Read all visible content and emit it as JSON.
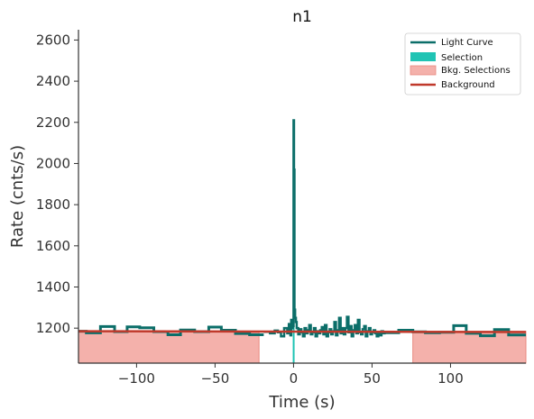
{
  "chart_data": {
    "type": "line",
    "title": "n1",
    "xlabel": "Time (s)",
    "ylabel": "Rate (cnts/s)",
    "xlim": [
      -137,
      148
    ],
    "ylim": [
      1030,
      2650
    ],
    "xticks": [
      -100,
      -50,
      0,
      50,
      100
    ],
    "yticks": [
      1200,
      1400,
      1600,
      1800,
      2000,
      2200,
      2400,
      2600
    ],
    "grid": false,
    "legend_position": "top-right",
    "legend": [
      {
        "label": "Light Curve",
        "kind": "line",
        "color": "#0b6e69"
      },
      {
        "label": "Selection",
        "kind": "patch",
        "color": "#20c4b4"
      },
      {
        "label": "Bkg. Selections",
        "kind": "patch",
        "color": "#f4b1ab"
      },
      {
        "label": "Background",
        "kind": "line",
        "color": "#c0392b"
      }
    ],
    "background_model": {
      "x": [
        -137,
        148
      ],
      "y": [
        1185,
        1181
      ]
    },
    "selection": {
      "x": [
        -0.5,
        0.5
      ]
    },
    "bkg_selections": [
      {
        "x": [
          -137,
          -22
        ]
      },
      {
        "x": [
          76,
          148
        ]
      }
    ],
    "light_curve": {
      "coarse_left": {
        "edges": [
          -137,
          -132,
          -123,
          -114,
          -106,
          -98,
          -89,
          -80,
          -72,
          -63,
          -54,
          -46,
          -37,
          -28,
          -19
        ],
        "values": [
          1185,
          1177,
          1208,
          1183,
          1206,
          1202,
          1183,
          1168,
          1191,
          1183,
          1205,
          1190,
          1174,
          1168
        ]
      },
      "coarse_right": {
        "edges": [
          58,
          67,
          76,
          84,
          93,
          102,
          110,
          119,
          128,
          137,
          148
        ],
        "values": [
          1178,
          1190,
          1182,
          1178,
          1180,
          1212,
          1175,
          1163,
          1193,
          1167
        ]
      },
      "fine": {
        "x": [
          -19,
          -15,
          -12,
          -10,
          -8,
          -6,
          -4,
          -3,
          -2,
          -1.5,
          -1,
          -0.5,
          0,
          0.3,
          0.6,
          1,
          1.5,
          2,
          3,
          4,
          5,
          6,
          7,
          8,
          9,
          10,
          11,
          12,
          13,
          14,
          15,
          16,
          17,
          18,
          19,
          20,
          21,
          22,
          23,
          24,
          25,
          26,
          27,
          28,
          29,
          30,
          31,
          32,
          33,
          34,
          35,
          36,
          37,
          38,
          39,
          40,
          41,
          42,
          43,
          44,
          45,
          46,
          47,
          48,
          49,
          50,
          51,
          52,
          53,
          54,
          55,
          56,
          57,
          58
        ],
        "y": [
          1182,
          1175,
          1188,
          1180,
          1160,
          1200,
          1175,
          1220,
          1165,
          1240,
          1200,
          1210,
          2210,
          1970,
          1290,
          1250,
          1230,
          1200,
          1170,
          1195,
          1180,
          1160,
          1200,
          1175,
          1190,
          1215,
          1170,
          1180,
          1200,
          1160,
          1185,
          1175,
          1190,
          1205,
          1170,
          1215,
          1160,
          1180,
          1195,
          1170,
          1185,
          1230,
          1165,
          1190,
          1250,
          1175,
          1200,
          1170,
          1200,
          1255,
          1180,
          1210,
          1160,
          1190,
          1215,
          1175,
          1240,
          1180,
          1170,
          1195,
          1210,
          1160,
          1185,
          1200,
          1170,
          1180,
          1190,
          1175,
          1160,
          1180,
          1165,
          1185,
          1175,
          1178
        ]
      }
    }
  }
}
